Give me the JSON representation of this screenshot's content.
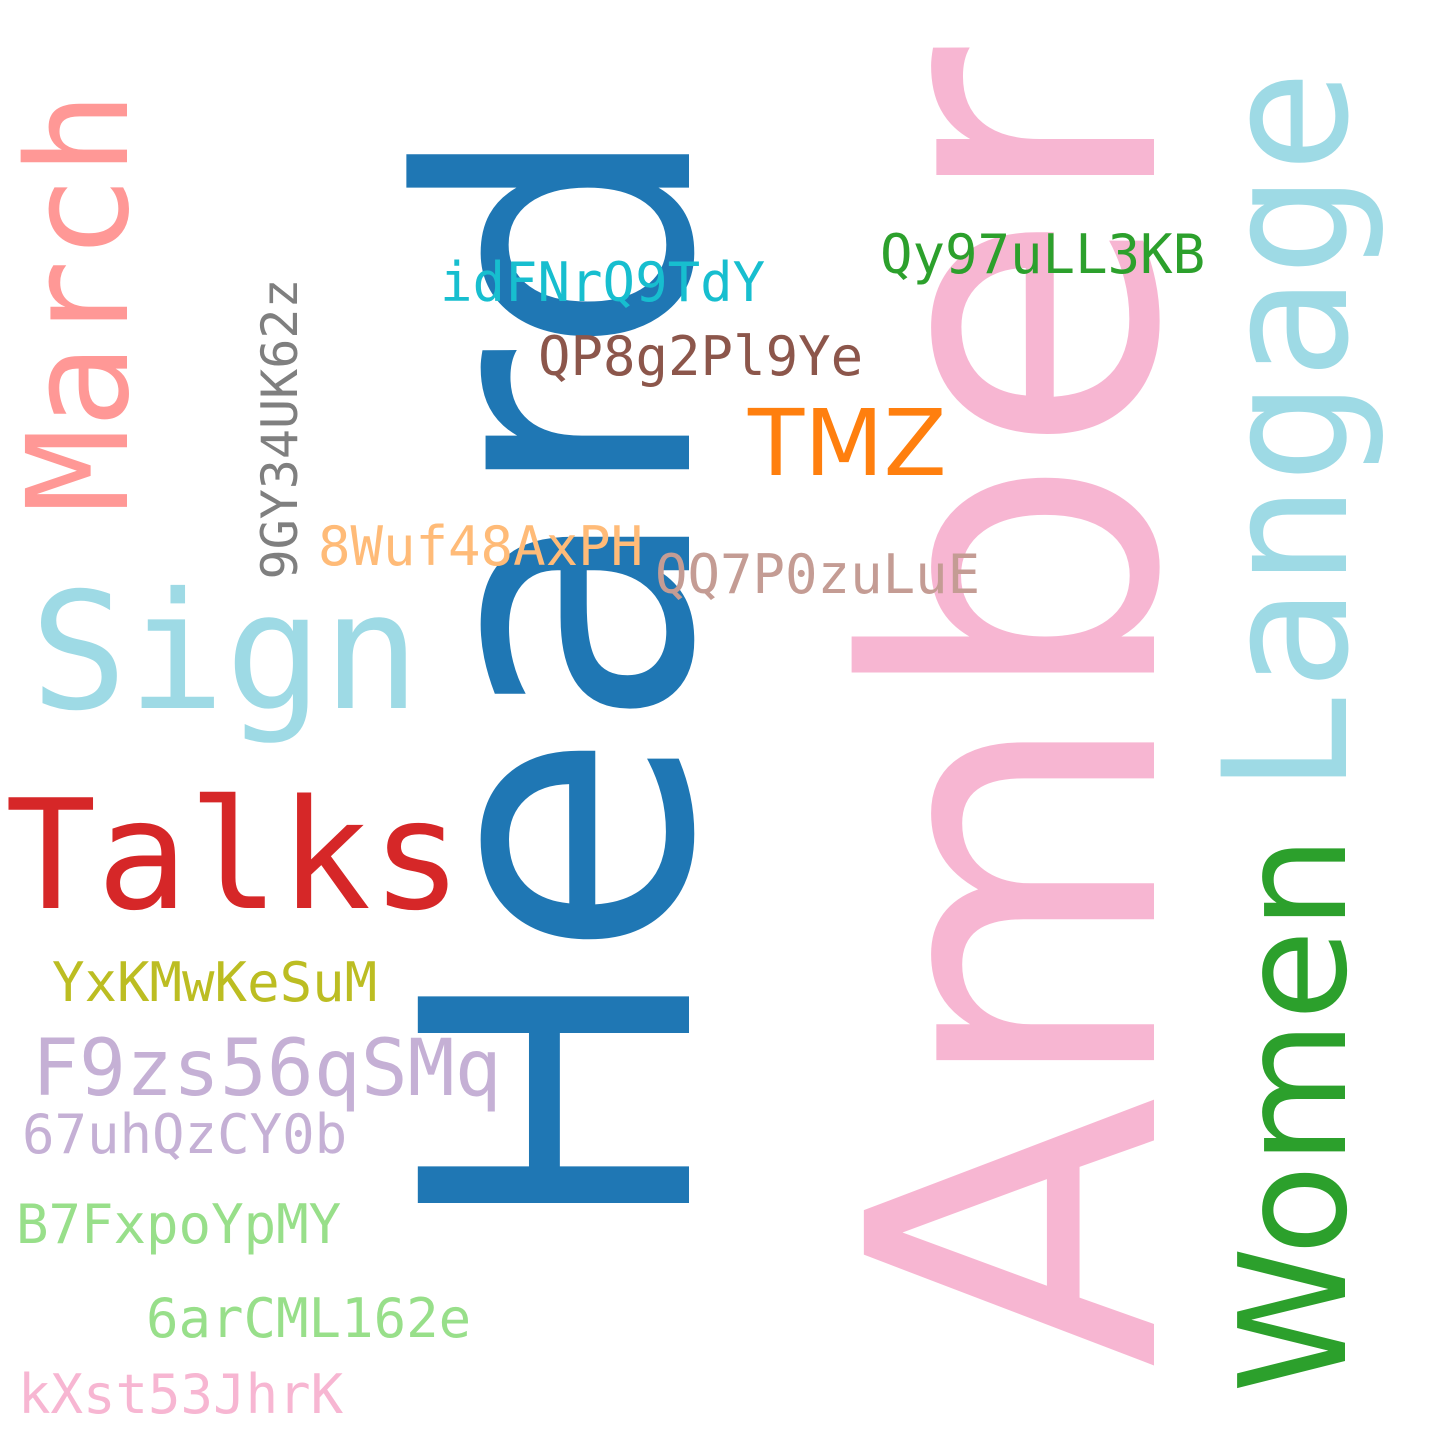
{
  "words": [
    {
      "id": "heard",
      "text": "Heard",
      "color": "#1f77b4",
      "orientation": "vertical"
    },
    {
      "id": "amber",
      "text": "Amber",
      "color": "#f7b6d2",
      "orientation": "vertical"
    },
    {
      "id": "langage",
      "text": "Langage",
      "color": "#9edae5",
      "orientation": "vertical"
    },
    {
      "id": "march",
      "text": "March",
      "color": "#ff9896",
      "orientation": "vertical"
    },
    {
      "id": "women",
      "text": "Women",
      "color": "#2ca02c",
      "orientation": "vertical"
    },
    {
      "id": "talks",
      "text": "Talks",
      "color": "#d62728",
      "orientation": "horizontal"
    },
    {
      "id": "sign",
      "text": "Sign",
      "color": "#9edae5",
      "orientation": "horizontal"
    },
    {
      "id": "tmz",
      "text": "TMZ",
      "color": "#ff7f0e",
      "orientation": "horizontal"
    },
    {
      "id": "qy97",
      "text": "Qy97uLL3KB",
      "color": "#2ca02c",
      "orientation": "horizontal"
    },
    {
      "id": "idfn",
      "text": "idFNrQ9TdY",
      "color": "#17becf",
      "orientation": "horizontal"
    },
    {
      "id": "qp8g",
      "text": "QP8g2Pl9Ye",
      "color": "#8c564b",
      "orientation": "horizontal"
    },
    {
      "id": "gy34",
      "text": "9GY34UK62z",
      "color": "#7f7f7f",
      "orientation": "vertical"
    },
    {
      "id": "wuf",
      "text": "8Wuf48AxPH",
      "color": "#ffbb78",
      "orientation": "horizontal"
    },
    {
      "id": "qq7p",
      "text": "QQ7P0zuLuE",
      "color": "#c49c94",
      "orientation": "horizontal"
    },
    {
      "id": "yxkm",
      "text": "YxKMwKeSuM",
      "color": "#bcbd22",
      "orientation": "horizontal"
    },
    {
      "id": "f9zs",
      "text": "F9zs56qSMq",
      "color": "#c5b0d5",
      "orientation": "horizontal"
    },
    {
      "id": "67uh",
      "text": "67uhQzCY0b",
      "color": "#c5b0d5",
      "orientation": "horizontal"
    },
    {
      "id": "b7fx",
      "text": "B7FxpoYpMY",
      "color": "#98df8a",
      "orientation": "horizontal"
    },
    {
      "id": "6arc",
      "text": "6arCML162e",
      "color": "#98df8a",
      "orientation": "horizontal"
    },
    {
      "id": "kxst",
      "text": "kXst53JhrK",
      "color": "#f7b6d2",
      "orientation": "horizontal"
    }
  ]
}
